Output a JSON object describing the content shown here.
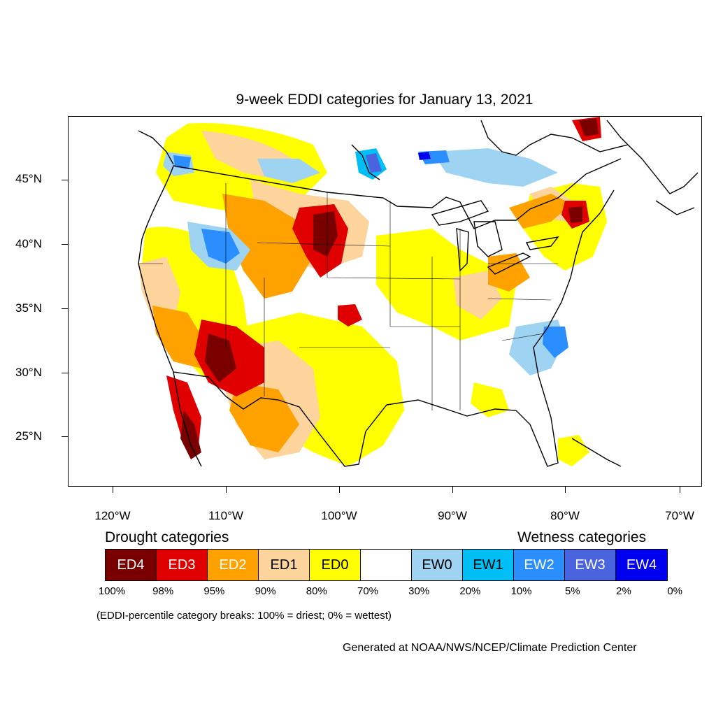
{
  "title": "9-week EDDI categories for January 13, 2021",
  "y_ticks": [
    "45°N",
    "40°N",
    "35°N",
    "30°N",
    "25°N"
  ],
  "x_ticks": [
    "120°W",
    "110°W",
    "100°W",
    "90°W",
    "80°W",
    "70°W"
  ],
  "drought_header": "Drought categories",
  "wetness_header": "Wetness categories",
  "legend": [
    {
      "label": "ED4",
      "color": "#7a0000",
      "text_color": "#ffffff"
    },
    {
      "label": "ED3",
      "color": "#e00000",
      "text_color": "#ffffff"
    },
    {
      "label": "ED2",
      "color": "#ffa200",
      "text_color": "#ffffff"
    },
    {
      "label": "ED1",
      "color": "#fcd49c",
      "text_color": "#000000"
    },
    {
      "label": "ED0",
      "color": "#ffff00",
      "text_color": "#000000"
    },
    {
      "label": "",
      "color": "#ffffff",
      "text_color": "#000000"
    },
    {
      "label": "EW0",
      "color": "#9fd3f2",
      "text_color": "#000000"
    },
    {
      "label": "EW1",
      "color": "#00bff5",
      "text_color": "#000000"
    },
    {
      "label": "EW2",
      "color": "#2a8eff",
      "text_color": "#ffffff"
    },
    {
      "label": "EW3",
      "color": "#4a64e0",
      "text_color": "#ffffff"
    },
    {
      "label": "EW4",
      "color": "#0000f0",
      "text_color": "#ffffff"
    }
  ],
  "percent_breaks": [
    "100%",
    "98%",
    "95%",
    "90%",
    "80%",
    "70%",
    "30%",
    "20%",
    "10%",
    "5%",
    "2%",
    "0%"
  ],
  "breaks_note": "(EDDI-percentile category breaks: 100% = driest; 0% = wettest)",
  "credit": "Generated at NOAA/NWS/NCEP/Climate Prediction Center"
}
